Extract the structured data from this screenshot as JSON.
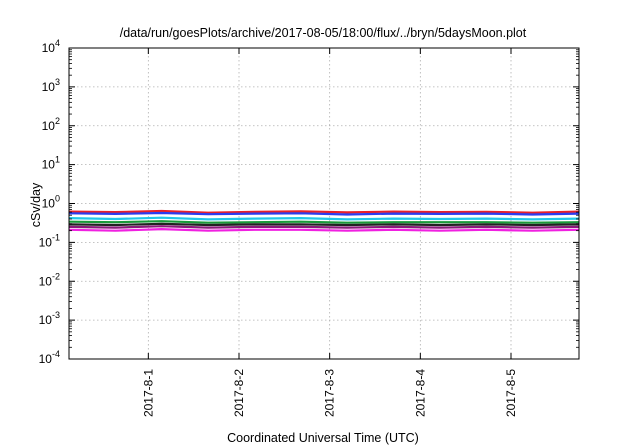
{
  "chart_data": {
    "type": "line",
    "title": "/data/run/goesPlots/archive/2017-08-05/18:00/flux/../bryn/5daysMoon.plot",
    "xlabel": "Coordinated Universal Time (UTC)",
    "ylabel": "cSv/day",
    "yscale": "log",
    "ylim": [
      0.0001,
      10000
    ],
    "xlim": [
      "2017-07-31T03:00",
      "2017-08-05T18:00"
    ],
    "grid": true,
    "y_ticks": [
      {
        "base": "10",
        "exp": "-4",
        "value": 0.0001
      },
      {
        "base": "10",
        "exp": "-3",
        "value": 0.001
      },
      {
        "base": "10",
        "exp": "-2",
        "value": 0.01
      },
      {
        "base": "10",
        "exp": "-1",
        "value": 0.1
      },
      {
        "base": "10",
        "exp": "0",
        "value": 1
      },
      {
        "base": "10",
        "exp": "1",
        "value": 10
      },
      {
        "base": "10",
        "exp": "2",
        "value": 100
      },
      {
        "base": "10",
        "exp": "3",
        "value": 1000
      },
      {
        "base": "10",
        "exp": "4",
        "value": 10000
      }
    ],
    "x_ticks": [
      {
        "label": "2017-8-1",
        "date": "2017-08-01"
      },
      {
        "label": "2017-8-2",
        "date": "2017-08-02"
      },
      {
        "label": "2017-8-3",
        "date": "2017-08-03"
      },
      {
        "label": "2017-8-4",
        "date": "2017-08-04"
      },
      {
        "label": "2017-8-5",
        "date": "2017-08-05"
      }
    ],
    "series": [
      {
        "color": "#e8202a",
        "values": [
          0.62,
          0.6,
          0.64,
          0.58,
          0.61,
          0.63,
          0.59,
          0.62,
          0.6,
          0.61,
          0.58,
          0.62
        ]
      },
      {
        "color": "#2a3cf0",
        "values": [
          0.56,
          0.54,
          0.57,
          0.53,
          0.55,
          0.56,
          0.52,
          0.55,
          0.54,
          0.55,
          0.52,
          0.55
        ]
      },
      {
        "color": "#22c8e8",
        "values": [
          0.42,
          0.4,
          0.43,
          0.39,
          0.41,
          0.42,
          0.39,
          0.41,
          0.4,
          0.41,
          0.39,
          0.41
        ]
      },
      {
        "color": "#1a9a3a",
        "values": [
          0.34,
          0.33,
          0.35,
          0.32,
          0.33,
          0.34,
          0.32,
          0.33,
          0.33,
          0.33,
          0.32,
          0.33
        ]
      },
      {
        "color": "#222222",
        "values": [
          0.29,
          0.28,
          0.3,
          0.28,
          0.29,
          0.29,
          0.28,
          0.29,
          0.28,
          0.29,
          0.28,
          0.29
        ]
      },
      {
        "color": "#8a1a7a",
        "values": [
          0.25,
          0.24,
          0.26,
          0.24,
          0.25,
          0.25,
          0.24,
          0.25,
          0.24,
          0.25,
          0.24,
          0.25
        ]
      },
      {
        "color": "#f020e0",
        "values": [
          0.21,
          0.2,
          0.22,
          0.2,
          0.21,
          0.21,
          0.2,
          0.21,
          0.2,
          0.21,
          0.2,
          0.21
        ]
      }
    ]
  }
}
